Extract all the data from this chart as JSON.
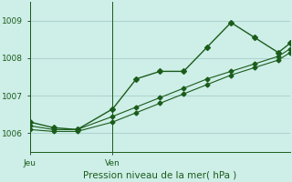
{
  "title": "Pression niveau de la mer( hPa )",
  "background_color": "#ceeee8",
  "grid_color": "#aad4ce",
  "line_color_dark": "#1a5c1a",
  "line_color_light": "#2d8a2d",
  "ylabel_color": "#1a5c1a",
  "xlabel_color": "#1a5c1a",
  "ylim": [
    1005.5,
    1009.5
  ],
  "yticks": [
    1006,
    1007,
    1008,
    1009
  ],
  "xlim": [
    0,
    11
  ],
  "jeu_x": 0,
  "ven_x": 3.5,
  "series1_x": [
    0,
    1,
    2,
    3.5,
    4.5,
    5.5,
    6.5,
    7.5,
    8.5,
    9.5,
    10.5,
    11
  ],
  "series1_y": [
    1006.3,
    1006.15,
    1006.1,
    1006.65,
    1007.45,
    1007.65,
    1007.65,
    1008.3,
    1008.95,
    1008.55,
    1008.15,
    1008.4
  ],
  "series2_x": [
    0,
    1,
    2,
    3.5,
    4.5,
    5.5,
    6.5,
    7.5,
    8.5,
    9.5,
    10.5,
    11
  ],
  "series2_y": [
    1006.1,
    1006.05,
    1006.05,
    1006.3,
    1006.55,
    1006.8,
    1007.05,
    1007.3,
    1007.55,
    1007.75,
    1007.95,
    1008.15
  ],
  "series3_x": [
    0,
    1,
    2,
    3.5,
    4.5,
    5.5,
    6.5,
    7.5,
    8.5,
    9.5,
    10.5,
    11
  ],
  "series3_y": [
    1006.2,
    1006.1,
    1006.1,
    1006.45,
    1006.7,
    1006.95,
    1007.2,
    1007.45,
    1007.65,
    1007.85,
    1008.05,
    1008.25
  ],
  "marker": "D",
  "markersize_main": 3,
  "markersize_band": 2.5,
  "linewidth_main": 1.0,
  "linewidth_band": 0.8
}
